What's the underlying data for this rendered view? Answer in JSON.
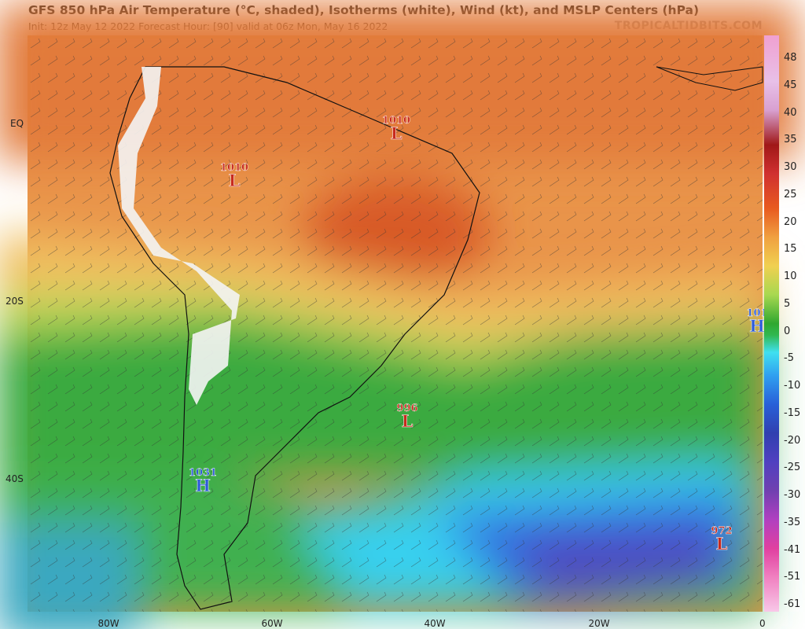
{
  "header": {
    "title": "GFS 850 hPa Air Temperature (°C, shaded), Isotherms (white), Wind (kt), and MSLP Centers (hPa)",
    "subtitle": "Init: 12z May 12 2022   Forecast Hour: [90]   valid at 06z Mon, May 16 2022",
    "credit": "TROPICALTIDBITS.COM"
  },
  "axes": {
    "lon_labels": [
      "80W",
      "60W",
      "40W",
      "20W",
      "0"
    ],
    "lat_labels": [
      "EQ",
      "20S",
      "40S"
    ]
  },
  "colorbar": {
    "labels": [
      "48",
      "45",
      "40",
      "35",
      "30",
      "25",
      "20",
      "15",
      "10",
      "5",
      "0",
      "-5",
      "-10",
      "-15",
      "-20",
      "-25",
      "-30",
      "-35",
      "-41",
      "-51",
      "-61"
    ]
  },
  "centers": [
    {
      "value": "1010",
      "kind": "L"
    },
    {
      "value": "1010",
      "kind": "L"
    },
    {
      "value": "996",
      "kind": "L"
    },
    {
      "value": "1031",
      "kind": "H"
    },
    {
      "value": "972",
      "kind": "L"
    },
    {
      "value": "101",
      "kind": "H"
    }
  ]
}
